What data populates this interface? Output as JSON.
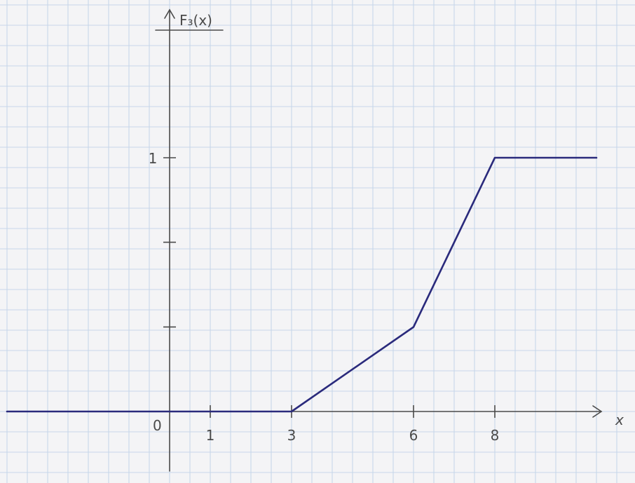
{
  "chart_data": {
    "type": "line",
    "title": "",
    "ylabel": "F₃(x)",
    "xlabel": "x",
    "origin_label": "0",
    "x_ticks": [
      1,
      3,
      6,
      8
    ],
    "x_tick_labels": [
      "1",
      "3",
      "6",
      "8"
    ],
    "y_ticks": [
      1
    ],
    "y_tick_labels": [
      "1"
    ],
    "y_unlabeled_ticks": [
      0.333,
      0.667
    ],
    "series": [
      {
        "x": [
          -4,
          0,
          3,
          6,
          8,
          10.5
        ],
        "y": [
          0,
          0,
          0,
          0.333,
          1,
          1
        ]
      }
    ],
    "grid": true,
    "xlim": [
      -4,
      10.5
    ],
    "ylim": [
      -0.25,
      1.62
    ],
    "line_color": "#2a2a7c"
  }
}
